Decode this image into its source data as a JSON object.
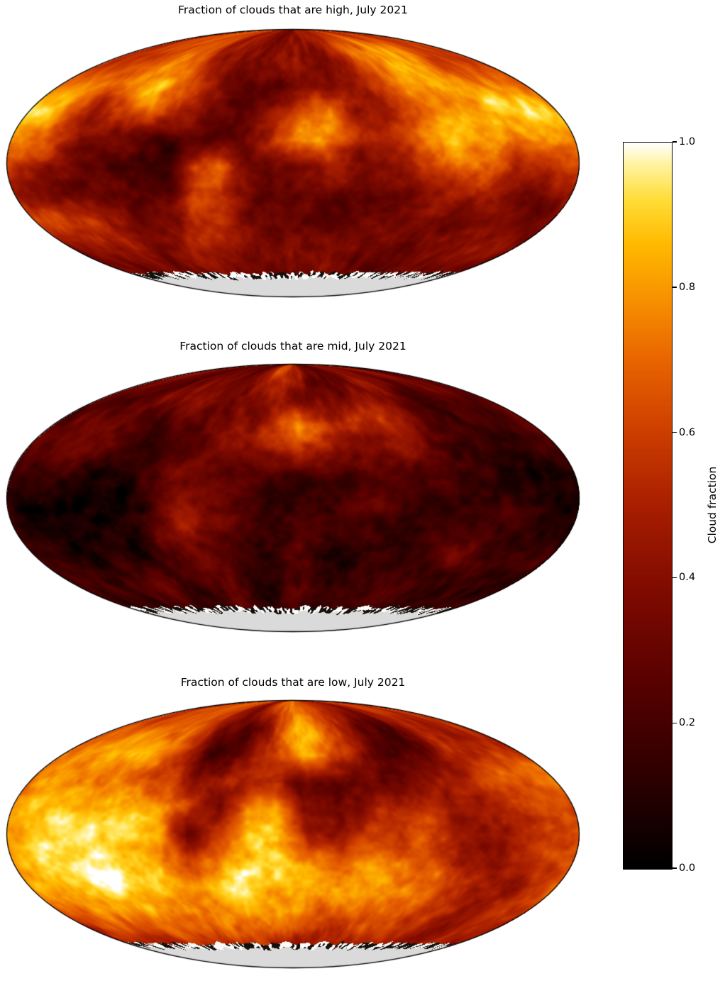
{
  "figure": {
    "background": "#ffffff",
    "missing_data_color": "#dadada"
  },
  "chart_data": {
    "type": "heatmap",
    "projection": "mollweide",
    "value_range": [
      0,
      1
    ],
    "grid_shape": [
      10,
      20
    ],
    "grid_axes": {
      "rows": "latitude 90N (row 0) to 90S (row 9)",
      "cols": "longitude 180W (col 0) to 180E (col 19)"
    },
    "colormap": {
      "name": "hot (black-red-orange-yellow-white)",
      "stops": [
        [
          0.0,
          "#000000"
        ],
        [
          0.12,
          "#2b0000"
        ],
        [
          0.25,
          "#560000"
        ],
        [
          0.38,
          "#7e0a00"
        ],
        [
          0.5,
          "#a81e00"
        ],
        [
          0.6,
          "#cc3d00"
        ],
        [
          0.7,
          "#e86400"
        ],
        [
          0.78,
          "#f78e00"
        ],
        [
          0.86,
          "#ffb900"
        ],
        [
          0.92,
          "#ffdc35"
        ],
        [
          0.97,
          "#fff3a0"
        ],
        [
          1.0,
          "#ffffff"
        ]
      ]
    },
    "colorbar": {
      "label": "Cloud fraction",
      "tick_values": [
        1.0,
        0.8,
        0.6,
        0.4,
        0.2,
        0.0
      ],
      "tick_labels": [
        "1.0",
        "0.8",
        "0.6",
        "0.4",
        "0.2",
        "0.0"
      ],
      "orientation": "vertical"
    },
    "missing_data_region": "south polar cap (no data, gray)",
    "maps": [
      {
        "level": "high",
        "title": "Fraction of clouds that are high, July 2021",
        "grid": [
          [
            0.5,
            0.55,
            0.6,
            0.6,
            0.65,
            0.6,
            0.5,
            0.45,
            0.4,
            0.45,
            0.5,
            0.45,
            0.4,
            0.5,
            0.6,
            0.6,
            0.55,
            0.5,
            0.5,
            0.5
          ],
          [
            0.55,
            0.6,
            0.65,
            0.75,
            0.8,
            0.7,
            0.5,
            0.35,
            0.3,
            0.35,
            0.35,
            0.4,
            0.5,
            0.7,
            0.85,
            0.8,
            0.75,
            0.7,
            0.65,
            0.6
          ],
          [
            0.75,
            0.8,
            0.7,
            0.85,
            0.9,
            0.8,
            0.5,
            0.3,
            0.25,
            0.2,
            0.3,
            0.4,
            0.45,
            0.65,
            0.9,
            0.85,
            0.8,
            0.8,
            0.8,
            0.7
          ],
          [
            0.85,
            0.75,
            0.55,
            0.6,
            0.7,
            0.55,
            0.4,
            0.3,
            0.3,
            0.45,
            0.7,
            0.8,
            0.45,
            0.5,
            0.7,
            0.8,
            0.85,
            0.9,
            0.9,
            0.8
          ],
          [
            0.8,
            0.6,
            0.35,
            0.3,
            0.3,
            0.35,
            0.35,
            0.3,
            0.35,
            0.55,
            0.85,
            0.75,
            0.5,
            0.55,
            0.7,
            0.85,
            0.8,
            0.75,
            0.85,
            0.8
          ],
          [
            0.6,
            0.45,
            0.25,
            0.18,
            0.15,
            0.2,
            0.55,
            0.7,
            0.35,
            0.2,
            0.35,
            0.45,
            0.3,
            0.4,
            0.55,
            0.8,
            0.75,
            0.55,
            0.6,
            0.65
          ],
          [
            0.45,
            0.35,
            0.25,
            0.2,
            0.18,
            0.25,
            0.6,
            0.5,
            0.3,
            0.2,
            0.22,
            0.28,
            0.2,
            0.25,
            0.35,
            0.5,
            0.55,
            0.4,
            0.35,
            0.45
          ],
          [
            0.5,
            0.55,
            0.5,
            0.4,
            0.3,
            0.35,
            0.5,
            0.45,
            0.35,
            0.3,
            0.25,
            0.3,
            0.28,
            0.25,
            0.3,
            0.35,
            0.4,
            0.35,
            0.32,
            0.4
          ],
          [
            0.4,
            0.45,
            0.5,
            0.45,
            0.4,
            0.42,
            0.48,
            0.45,
            0.4,
            0.35,
            0.32,
            0.35,
            0.4,
            0.35,
            0.32,
            0.35,
            0.4,
            0.42,
            0.4,
            0.38
          ],
          [
            0.3,
            0.32,
            0.3,
            0.33,
            0.35,
            0.33,
            0.3,
            0.32,
            0.3,
            0.28,
            0.3,
            0.32,
            0.3,
            0.32,
            0.3,
            0.32,
            0.3,
            0.28,
            0.3,
            0.3
          ]
        ]
      },
      {
        "level": "mid",
        "title": "Fraction of clouds that are mid, July 2021",
        "grid": [
          [
            0.35,
            0.4,
            0.35,
            0.3,
            0.35,
            0.3,
            0.35,
            0.45,
            0.6,
            0.55,
            0.4,
            0.35,
            0.3,
            0.35,
            0.3,
            0.35,
            0.3,
            0.35,
            0.3,
            0.35
          ],
          [
            0.3,
            0.35,
            0.3,
            0.35,
            0.4,
            0.35,
            0.3,
            0.35,
            0.45,
            0.5,
            0.4,
            0.35,
            0.3,
            0.35,
            0.4,
            0.3,
            0.25,
            0.3,
            0.35,
            0.3
          ],
          [
            0.25,
            0.3,
            0.35,
            0.3,
            0.25,
            0.3,
            0.25,
            0.3,
            0.35,
            0.55,
            0.75,
            0.6,
            0.45,
            0.5,
            0.4,
            0.3,
            0.25,
            0.2,
            0.25,
            0.3
          ],
          [
            0.2,
            0.25,
            0.3,
            0.25,
            0.2,
            0.25,
            0.2,
            0.25,
            0.3,
            0.45,
            0.6,
            0.45,
            0.35,
            0.4,
            0.3,
            0.25,
            0.2,
            0.15,
            0.2,
            0.25
          ],
          [
            0.15,
            0.2,
            0.15,
            0.1,
            0.15,
            0.2,
            0.3,
            0.35,
            0.2,
            0.15,
            0.2,
            0.25,
            0.2,
            0.25,
            0.2,
            0.15,
            0.2,
            0.15,
            0.1,
            0.15
          ],
          [
            0.1,
            0.1,
            0.08,
            0.08,
            0.1,
            0.15,
            0.4,
            0.3,
            0.15,
            0.1,
            0.15,
            0.2,
            0.25,
            0.2,
            0.15,
            0.2,
            0.15,
            0.1,
            0.08,
            0.1
          ],
          [
            0.12,
            0.1,
            0.1,
            0.12,
            0.15,
            0.2,
            0.45,
            0.3,
            0.2,
            0.15,
            0.2,
            0.15,
            0.2,
            0.15,
            0.2,
            0.25,
            0.15,
            0.1,
            0.1,
            0.12
          ],
          [
            0.18,
            0.15,
            0.18,
            0.2,
            0.18,
            0.2,
            0.3,
            0.25,
            0.2,
            0.18,
            0.2,
            0.18,
            0.15,
            0.18,
            0.2,
            0.25,
            0.2,
            0.15,
            0.18,
            0.18
          ],
          [
            0.2,
            0.22,
            0.2,
            0.25,
            0.22,
            0.2,
            0.25,
            0.22,
            0.2,
            0.22,
            0.2,
            0.18,
            0.2,
            0.22,
            0.2,
            0.22,
            0.25,
            0.2,
            0.22,
            0.2
          ],
          [
            0.18,
            0.2,
            0.18,
            0.2,
            0.22,
            0.2,
            0.18,
            0.2,
            0.18,
            0.2,
            0.18,
            0.2,
            0.18,
            0.2,
            0.22,
            0.2,
            0.18,
            0.2,
            0.18,
            0.18
          ]
        ]
      },
      {
        "level": "low",
        "title": "Fraction of clouds that are low, July 2021",
        "grid": [
          [
            0.5,
            0.55,
            0.6,
            0.6,
            0.55,
            0.5,
            0.45,
            0.5,
            0.65,
            0.8,
            0.75,
            0.65,
            0.6,
            0.5,
            0.45,
            0.5,
            0.55,
            0.6,
            0.55,
            0.5
          ],
          [
            0.55,
            0.6,
            0.65,
            0.7,
            0.65,
            0.55,
            0.35,
            0.25,
            0.45,
            0.75,
            0.8,
            0.7,
            0.55,
            0.35,
            0.28,
            0.35,
            0.5,
            0.55,
            0.6,
            0.55
          ],
          [
            0.6,
            0.75,
            0.85,
            0.88,
            0.78,
            0.6,
            0.28,
            0.25,
            0.5,
            0.72,
            0.78,
            0.68,
            0.5,
            0.28,
            0.25,
            0.35,
            0.5,
            0.6,
            0.65,
            0.6
          ],
          [
            0.65,
            0.8,
            0.85,
            0.8,
            0.72,
            0.62,
            0.45,
            0.5,
            0.6,
            0.55,
            0.3,
            0.28,
            0.4,
            0.35,
            0.32,
            0.4,
            0.55,
            0.65,
            0.68,
            0.65
          ],
          [
            0.72,
            0.82,
            0.86,
            0.82,
            0.78,
            0.8,
            0.6,
            0.35,
            0.75,
            0.8,
            0.35,
            0.28,
            0.45,
            0.55,
            0.5,
            0.35,
            0.45,
            0.6,
            0.65,
            0.7
          ],
          [
            0.8,
            0.88,
            0.92,
            0.95,
            0.9,
            0.85,
            0.35,
            0.6,
            0.88,
            0.85,
            0.5,
            0.45,
            0.62,
            0.68,
            0.6,
            0.45,
            0.42,
            0.5,
            0.6,
            0.72
          ],
          [
            0.85,
            0.9,
            0.95,
            0.96,
            0.92,
            0.86,
            0.6,
            0.78,
            0.92,
            0.94,
            0.8,
            0.7,
            0.78,
            0.82,
            0.7,
            0.52,
            0.45,
            0.5,
            0.58,
            0.75
          ],
          [
            0.8,
            0.86,
            0.9,
            0.92,
            0.9,
            0.88,
            0.82,
            0.86,
            0.9,
            0.92,
            0.86,
            0.8,
            0.82,
            0.84,
            0.74,
            0.6,
            0.5,
            0.48,
            0.56,
            0.7
          ],
          [
            0.6,
            0.66,
            0.7,
            0.72,
            0.7,
            0.68,
            0.66,
            0.7,
            0.72,
            0.7,
            0.68,
            0.64,
            0.6,
            0.62,
            0.6,
            0.55,
            0.5,
            0.46,
            0.5,
            0.55
          ],
          [
            0.45,
            0.5,
            0.48,
            0.5,
            0.52,
            0.5,
            0.48,
            0.5,
            0.48,
            0.45,
            0.48,
            0.5,
            0.48,
            0.5,
            0.48,
            0.45,
            0.42,
            0.45,
            0.48,
            0.45
          ]
        ]
      }
    ]
  }
}
